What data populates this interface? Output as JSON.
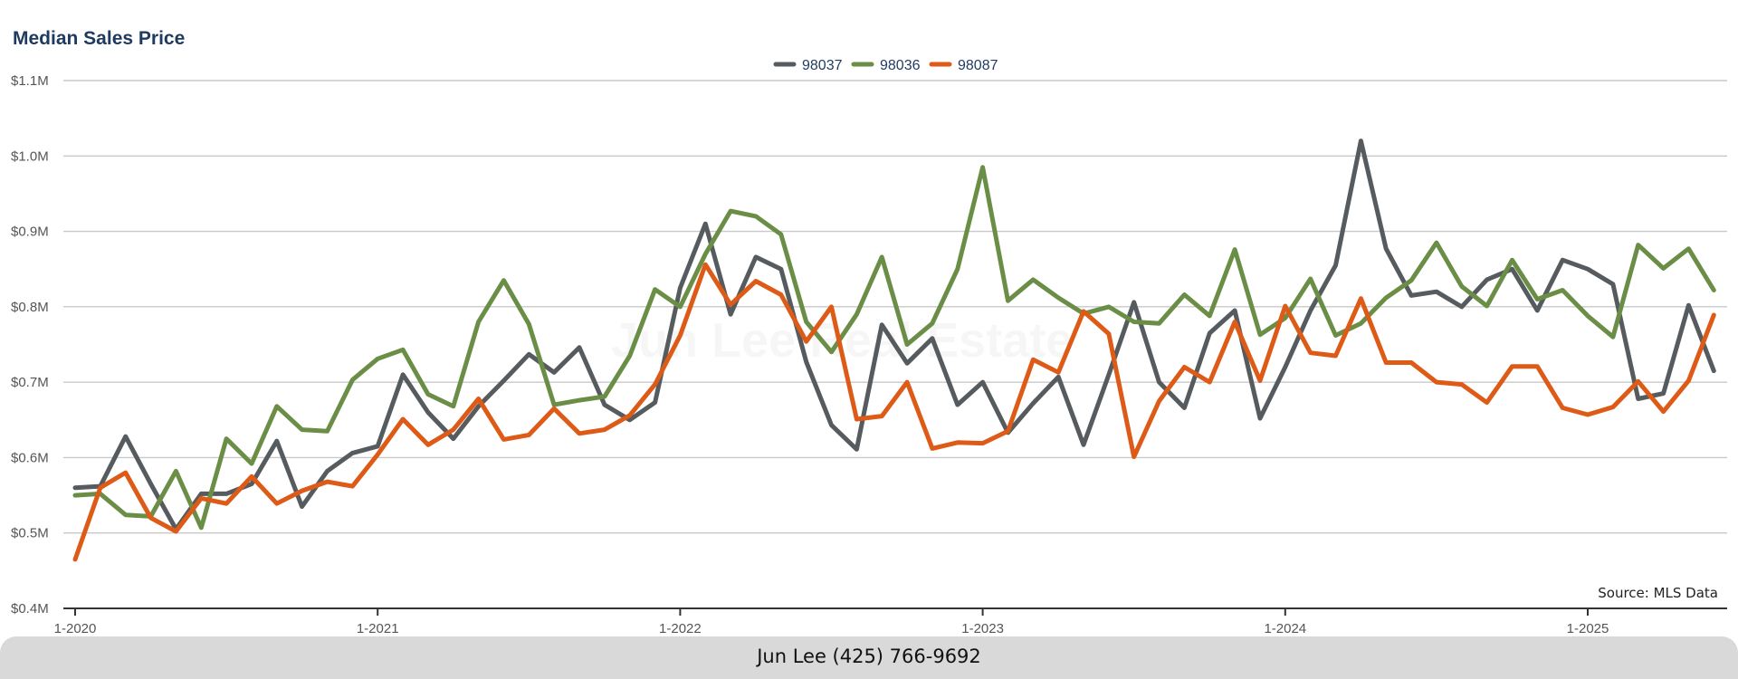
{
  "chart_data": {
    "type": "line",
    "title": "Median Sales Price",
    "source": "Source: MLS Data",
    "watermark": "Jun Lee Real Estate",
    "ylim": [
      400000,
      1100000
    ],
    "yticks": [
      {
        "value": 400000,
        "label": "$0.4M"
      },
      {
        "value": 500000,
        "label": "$0.5M"
      },
      {
        "value": 600000,
        "label": "$0.6M"
      },
      {
        "value": 700000,
        "label": "$0.7M"
      },
      {
        "value": 800000,
        "label": "$0.8M"
      },
      {
        "value": 900000,
        "label": "$0.9M"
      },
      {
        "value": 1000000,
        "label": "$1.0M"
      },
      {
        "value": 1100000,
        "label": "$1.1M"
      }
    ],
    "xticks": [
      "1-2020",
      "1-2021",
      "1-2022",
      "1-2023",
      "1-2024",
      "1-2025"
    ],
    "x": [
      "1-2020",
      "2-2020",
      "3-2020",
      "4-2020",
      "5-2020",
      "6-2020",
      "7-2020",
      "8-2020",
      "9-2020",
      "10-2020",
      "11-2020",
      "12-2020",
      "1-2021",
      "2-2021",
      "3-2021",
      "4-2021",
      "5-2021",
      "6-2021",
      "7-2021",
      "8-2021",
      "9-2021",
      "10-2021",
      "11-2021",
      "12-2021",
      "1-2022",
      "2-2022",
      "3-2022",
      "4-2022",
      "5-2022",
      "6-2022",
      "7-2022",
      "8-2022",
      "9-2022",
      "10-2022",
      "11-2022",
      "12-2022",
      "1-2023",
      "2-2023",
      "3-2023",
      "4-2023",
      "5-2023",
      "6-2023",
      "7-2023",
      "8-2023",
      "9-2023",
      "10-2023",
      "11-2023",
      "12-2023",
      "1-2024",
      "2-2024",
      "3-2024",
      "4-2024",
      "5-2024",
      "6-2024",
      "7-2024",
      "8-2024",
      "9-2024",
      "10-2024",
      "11-2024",
      "12-2024",
      "1-2025",
      "2-2025",
      "3-2025",
      "4-2025",
      "5-2025",
      "6-2025"
    ],
    "legend_position": "top-center",
    "grid": true,
    "series": [
      {
        "name": "98037",
        "color": "#555b5e",
        "values": [
          560000,
          562000,
          628000,
          565000,
          505000,
          552000,
          552000,
          565000,
          622000,
          535000,
          582000,
          606000,
          615000,
          710000,
          660000,
          625000,
          668000,
          702000,
          737000,
          713000,
          746000,
          670000,
          650000,
          673000,
          825000,
          910000,
          790000,
          866000,
          850000,
          727000,
          643000,
          611000,
          776000,
          725000,
          758000,
          670000,
          700000,
          633000,
          672000,
          707000,
          617000,
          710000,
          806000,
          700000,
          666000,
          765000,
          795000,
          652000,
          720000,
          795000,
          855000,
          1020000,
          877000,
          815000,
          820000,
          800000,
          836000,
          850000,
          795000,
          862000,
          850000,
          830000,
          678000,
          685000,
          802000,
          715000
        ]
      },
      {
        "name": "98036",
        "color": "#6b8e47",
        "values": [
          550000,
          552000,
          524000,
          522000,
          582000,
          507000,
          625000,
          592000,
          668000,
          637000,
          635000,
          703000,
          731000,
          743000,
          684000,
          668000,
          780000,
          835000,
          777000,
          670000,
          676000,
          681000,
          735000,
          823000,
          800000,
          870000,
          927000,
          920000,
          896000,
          780000,
          740000,
          790000,
          866000,
          750000,
          778000,
          850000,
          985000,
          808000,
          836000,
          812000,
          791000,
          800000,
          780000,
          778000,
          816000,
          788000,
          876000,
          763000,
          785000,
          837000,
          762000,
          778000,
          812000,
          835000,
          885000,
          827000,
          801000,
          862000,
          810000,
          822000,
          788000,
          760000,
          882000,
          851000,
          877000,
          822000
        ]
      },
      {
        "name": "98087",
        "color": "#dd5a17",
        "values": [
          465000,
          560000,
          580000,
          520000,
          502000,
          546000,
          539000,
          575000,
          539000,
          556000,
          568000,
          562000,
          604000,
          651000,
          617000,
          637000,
          678000,
          624000,
          630000,
          665000,
          632000,
          637000,
          656000,
          697000,
          762000,
          856000,
          803000,
          834000,
          816000,
          754000,
          800000,
          651000,
          655000,
          700000,
          612000,
          620000,
          619000,
          635000,
          730000,
          713000,
          794000,
          764000,
          601000,
          675000,
          720000,
          700000,
          780000,
          702000,
          801000,
          739000,
          735000,
          811000,
          726000,
          726000,
          700000,
          697000,
          673000,
          721000,
          721000,
          666000,
          657000,
          667000,
          701000,
          661000,
          702000,
          789000
        ]
      }
    ]
  },
  "footer": {
    "text": "Jun Lee (425) 766-9692"
  }
}
